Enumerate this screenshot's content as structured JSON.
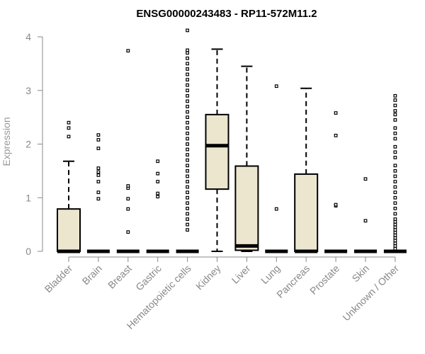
{
  "chart_data": {
    "type": "box",
    "title": "ENSG00000243483 - RP11-572M11.2",
    "xlabel": "",
    "ylabel": "Expression",
    "ylim": [
      0,
      4
    ],
    "yticks": [
      0,
      1,
      2,
      3,
      4
    ],
    "categories": [
      "Bladder",
      "Brain",
      "Breast",
      "Gastric",
      "Hematopoietic cells",
      "Kidney",
      "Liver",
      "Lung",
      "Pancreas",
      "Prostate",
      "Skin",
      "Unknown / Other"
    ],
    "colors": {
      "box_fill": "#ede6cf",
      "stroke": "#000000",
      "axis": "#888888"
    },
    "boxes": [
      {
        "category": "Bladder",
        "q1": 0,
        "median": 0,
        "q3": 0.79,
        "whisker_low": 0,
        "whisker_high": 1.68,
        "outliers": [
          2.14,
          2.3,
          2.4
        ]
      },
      {
        "category": "Brain",
        "q1": 0,
        "median": 0,
        "q3": 0,
        "whisker_low": 0,
        "whisker_high": 0,
        "outliers": [
          0.98,
          1.1,
          1.3,
          1.42,
          1.48,
          1.55,
          1.92,
          2.08,
          2.17
        ]
      },
      {
        "category": "Breast",
        "q1": 0,
        "median": 0,
        "q3": 0,
        "whisker_low": 0,
        "whisker_high": 0,
        "outliers": [
          0.36,
          0.79,
          0.98,
          1.18,
          1.22,
          3.74
        ]
      },
      {
        "category": "Gastric",
        "q1": 0,
        "median": 0,
        "q3": 0,
        "whisker_low": 0,
        "whisker_high": 0,
        "outliers": [
          1.02,
          1.08,
          1.3,
          1.45,
          1.68
        ]
      },
      {
        "category": "Hematopoietic cells",
        "q1": 0,
        "median": 0,
        "q3": 0,
        "whisker_low": 0,
        "whisker_high": 0,
        "outliers": [
          0.4,
          0.5,
          0.6,
          0.7,
          0.8,
          0.9,
          1.0,
          1.1,
          1.2,
          1.3,
          1.4,
          1.5,
          1.6,
          1.7,
          1.8,
          1.9,
          2.0,
          2.1,
          2.2,
          2.3,
          2.4,
          2.5,
          2.6,
          2.7,
          2.8,
          2.9,
          3.0,
          3.1,
          3.2,
          3.3,
          3.4,
          3.5,
          3.6,
          3.7,
          3.75,
          4.12
        ]
      },
      {
        "category": "Kidney",
        "q1": 1.16,
        "median": 1.97,
        "q3": 2.55,
        "whisker_low": 0,
        "whisker_high": 3.77,
        "outliers": []
      },
      {
        "category": "Liver",
        "q1": 0.02,
        "median": 0.1,
        "q3": 1.59,
        "whisker_low": 0,
        "whisker_high": 3.45,
        "outliers": []
      },
      {
        "category": "Lung",
        "q1": 0,
        "median": 0,
        "q3": 0,
        "whisker_low": 0,
        "whisker_high": 0,
        "outliers": [
          0.79,
          3.08
        ]
      },
      {
        "category": "Pancreas",
        "q1": 0,
        "median": 0,
        "q3": 1.44,
        "whisker_low": 0,
        "whisker_high": 3.04,
        "outliers": []
      },
      {
        "category": "Prostate",
        "q1": 0,
        "median": 0,
        "q3": 0,
        "whisker_low": 0,
        "whisker_high": 0,
        "outliers": [
          0.85,
          0.87,
          2.16,
          2.58
        ]
      },
      {
        "category": "Skin",
        "q1": 0,
        "median": 0,
        "q3": 0,
        "whisker_low": 0,
        "whisker_high": 0,
        "outliers": [
          0.57,
          1.35
        ]
      },
      {
        "category": "Unknown / Other",
        "q1": 0,
        "median": 0,
        "q3": 0,
        "whisker_low": 0,
        "whisker_high": 0,
        "outliers": [
          0.05,
          0.1,
          0.15,
          0.2,
          0.25,
          0.3,
          0.35,
          0.4,
          0.45,
          0.5,
          0.55,
          0.6,
          0.7,
          0.8,
          0.9,
          1.0,
          1.1,
          1.2,
          1.3,
          1.4,
          1.5,
          1.6,
          1.75,
          1.85,
          1.95,
          2.1,
          2.2,
          2.3,
          2.45,
          2.55,
          2.62,
          2.72,
          2.82,
          2.9
        ]
      }
    ]
  }
}
